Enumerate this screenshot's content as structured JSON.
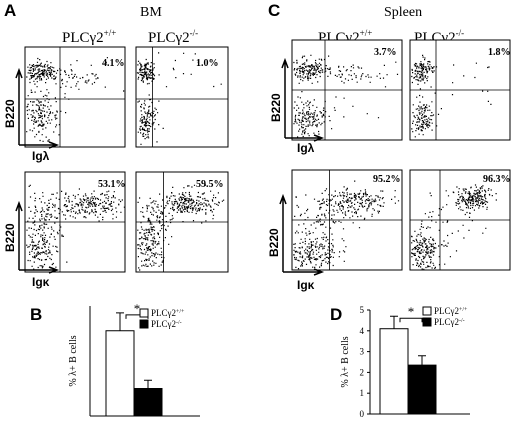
{
  "panels": {
    "A": {
      "letter": "A",
      "title": "BM",
      "wt_label": "PLCγ2",
      "wt_sup": "+/+",
      "ko_label": "PLCγ2",
      "ko_sup": "-/-"
    },
    "C": {
      "letter": "C",
      "title": "Spleen",
      "wt_label": "PLCγ2",
      "wt_sup": "+/+",
      "ko_label": "PLCγ2",
      "ko_sup": "-/-"
    },
    "B": {
      "letter": "B"
    },
    "D": {
      "letter": "D"
    }
  },
  "axes": {
    "y": "B220",
    "x_lambda": "Igλ",
    "x_kappa": "Igκ"
  },
  "percentages": {
    "A_lambda_wt": "4.1%",
    "A_lambda_ko": "1.0%",
    "A_kappa_wt": "53.1%",
    "A_kappa_ko": "59.5%",
    "C_lambda_wt": "3.7%",
    "C_lambda_ko": "1.8%",
    "C_kappa_wt": "95.2%",
    "C_kappa_ko": "96.3%"
  },
  "chart_data": [
    {
      "type": "bar",
      "panel": "B",
      "categories": [
        "PLCγ2+/+",
        "PLCγ2-/-"
      ],
      "values": [
        3.1,
        1.0
      ],
      "errors": [
        0.65,
        0.3
      ],
      "ylabel": "% λ+ B cells",
      "ylim": [
        0,
        4
      ],
      "yticks": [],
      "colors": [
        "#ffffff",
        "#000000"
      ],
      "significance": "*",
      "legend": [
        {
          "label": "PLCγ2",
          "sup": "+/+",
          "color": "#ffffff"
        },
        {
          "label": "PLCγ2",
          "sup": "-/-",
          "color": "#000000"
        }
      ]
    },
    {
      "type": "bar",
      "panel": "D",
      "categories": [
        "PLCγ2+/+",
        "PLCγ2-/-"
      ],
      "values": [
        4.1,
        2.35
      ],
      "errors": [
        0.6,
        0.45
      ],
      "ylabel": "% λ+ B cells",
      "ylim": [
        0,
        5
      ],
      "yticks": [
        "0",
        "1",
        "2",
        "3",
        "4",
        "5"
      ],
      "colors": [
        "#ffffff",
        "#000000"
      ],
      "significance": "*",
      "legend": [
        {
          "label": "PLCγ2",
          "sup": "+/+",
          "color": "#ffffff"
        },
        {
          "label": "PLCγ2",
          "sup": "-/-",
          "color": "#000000"
        }
      ]
    }
  ]
}
